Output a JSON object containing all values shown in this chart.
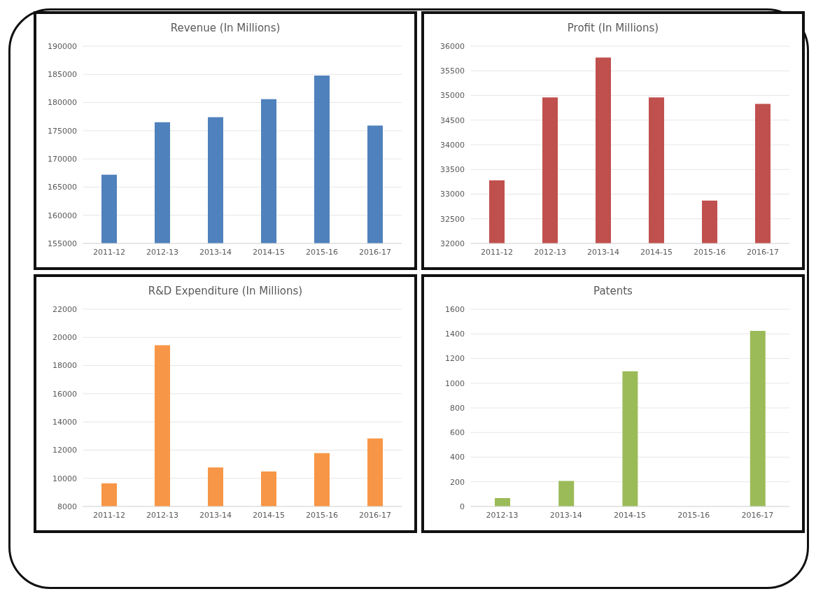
{
  "chart_data": [
    {
      "type": "bar",
      "title": "Revenue (In Millions)",
      "categories": [
        "2011-12",
        "2012-13",
        "2013-14",
        "2014-15",
        "2015-16",
        "2016-17"
      ],
      "values": [
        167200,
        176500,
        177400,
        180600,
        184800,
        175900
      ],
      "color": "#4f81bd",
      "ylim": [
        155000,
        190000
      ],
      "yticks": [
        155000,
        160000,
        165000,
        170000,
        175000,
        180000,
        185000,
        190000
      ],
      "grid": "y"
    },
    {
      "type": "bar",
      "title": "Profit (In Millions)",
      "categories": [
        "2011-12",
        "2012-13",
        "2013-14",
        "2014-15",
        "2015-16",
        "2016-17"
      ],
      "values": [
        33280,
        34960,
        35770,
        34960,
        32870,
        34830
      ],
      "color": "#c0504d",
      "ylim": [
        32000,
        36000
      ],
      "yticks": [
        32000,
        32500,
        33000,
        33500,
        34000,
        34500,
        35000,
        35500,
        36000
      ],
      "grid": "y"
    },
    {
      "type": "bar",
      "title": "R&D Expenditure (In Millions)",
      "categories": [
        "2011-12",
        "2012-13",
        "2013-14",
        "2014-15",
        "2015-16",
        "2016-17"
      ],
      "values": [
        9640,
        19440,
        10770,
        10480,
        11780,
        12830
      ],
      "color": "#f79646",
      "ylim": [
        8000,
        22000
      ],
      "yticks": [
        8000,
        10000,
        12000,
        14000,
        16000,
        18000,
        20000,
        22000
      ],
      "grid": "y"
    },
    {
      "type": "bar",
      "title": "Patents",
      "categories": [
        "2012-13",
        "2013-14",
        "2014-15",
        "2015-16",
        "2016-17"
      ],
      "values": [
        68,
        207,
        1097,
        0,
        1424
      ],
      "color": "#9bbb59",
      "ylim": [
        0,
        1600
      ],
      "yticks": [
        0,
        200,
        400,
        600,
        800,
        1000,
        1200,
        1400,
        1600
      ],
      "grid": "y"
    }
  ]
}
